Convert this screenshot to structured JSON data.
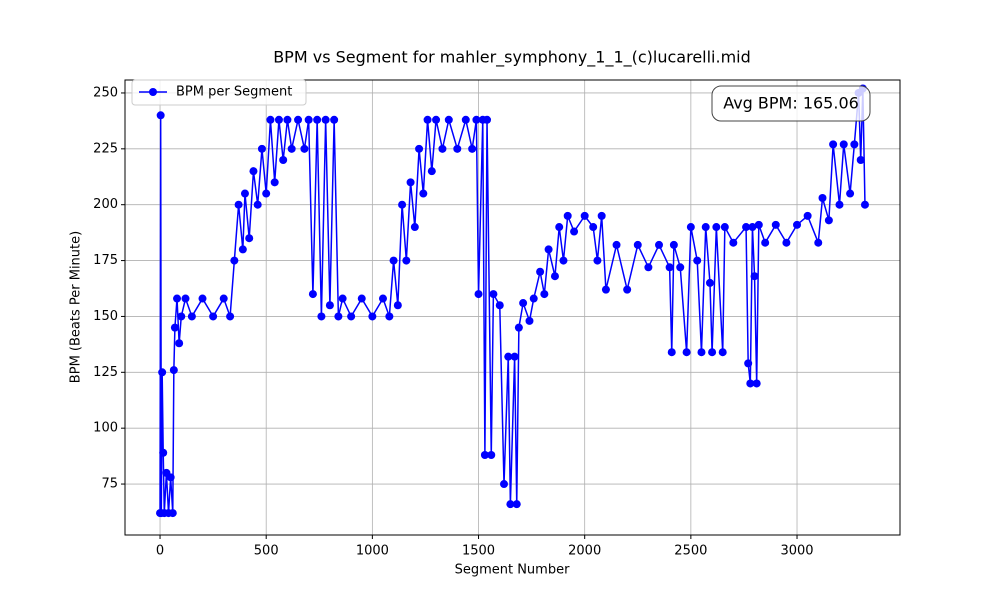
{
  "chart_data": {
    "type": "line",
    "title": "BPM vs Segment for mahler_symphony_1_1_(c)lucarelli.mid",
    "xlabel": "Segment Number",
    "ylabel": "BPM (Beats Per Minute)",
    "annotation": "Avg BPM: 165.06",
    "legend": "upper left",
    "grid": true,
    "xlim": [
      -165,
      3485
    ],
    "ylim": [
      52.2,
      255.8
    ],
    "xticks": [
      0,
      500,
      1000,
      1500,
      2000,
      2500,
      3000
    ],
    "yticks": [
      75,
      100,
      125,
      150,
      175,
      200,
      225,
      250
    ],
    "x": [
      0,
      3,
      6,
      10,
      15,
      20,
      30,
      40,
      50,
      60,
      65,
      70,
      80,
      90,
      100,
      120,
      150,
      200,
      250,
      300,
      330,
      350,
      370,
      390,
      400,
      420,
      440,
      460,
      480,
      500,
      520,
      540,
      560,
      580,
      600,
      620,
      650,
      680,
      700,
      720,
      740,
      760,
      780,
      800,
      820,
      840,
      860,
      900,
      950,
      1000,
      1050,
      1080,
      1100,
      1120,
      1140,
      1160,
      1180,
      1200,
      1220,
      1240,
      1260,
      1280,
      1300,
      1330,
      1360,
      1400,
      1440,
      1470,
      1490,
      1500,
      1520,
      1530,
      1540,
      1560,
      1570,
      1600,
      1620,
      1640,
      1650,
      1670,
      1680,
      1690,
      1710,
      1740,
      1760,
      1790,
      1810,
      1830,
      1860,
      1880,
      1900,
      1920,
      1950,
      2000,
      2040,
      2060,
      2080,
      2100,
      2150,
      2200,
      2250,
      2300,
      2350,
      2400,
      2410,
      2420,
      2450,
      2480,
      2500,
      2530,
      2550,
      2570,
      2590,
      2600,
      2620,
      2650,
      2660,
      2700,
      2760,
      2770,
      2780,
      2790,
      2800,
      2810,
      2820,
      2850,
      2900,
      2950,
      3000,
      3050,
      3100,
      3120,
      3150,
      3170,
      3200,
      3220,
      3250,
      3270,
      3290,
      3300,
      3310,
      3320
    ],
    "series": [
      {
        "name": "BPM per Segment",
        "color": "#0000ff",
        "values": [
          62,
          240,
          62,
          125,
          89,
          62,
          80,
          62,
          78,
          62,
          126,
          145,
          158,
          138,
          150,
          158,
          150,
          158,
          150,
          158,
          150,
          175,
          200,
          180,
          205,
          185,
          215,
          200,
          225,
          205,
          238,
          210,
          238,
          220,
          238,
          225,
          238,
          225,
          238,
          160,
          238,
          150,
          238,
          155,
          238,
          150,
          158,
          150,
          158,
          150,
          158,
          150,
          175,
          155,
          200,
          175,
          210,
          190,
          225,
          205,
          238,
          215,
          238,
          225,
          238,
          225,
          238,
          225,
          238,
          160,
          238,
          88,
          238,
          88,
          160,
          155,
          75,
          132,
          66,
          132,
          66,
          145,
          156,
          148,
          158,
          170,
          160,
          180,
          168,
          190,
          175,
          195,
          188,
          195,
          190,
          175,
          195,
          162,
          182,
          162,
          182,
          172,
          182,
          172,
          134,
          182,
          172,
          134,
          190,
          175,
          134,
          190,
          165,
          134,
          190,
          134,
          190,
          183,
          190,
          129,
          120,
          190,
          168,
          120,
          191,
          183,
          191,
          183,
          191,
          195,
          183,
          203,
          193,
          227,
          200,
          227,
          205,
          227,
          250,
          220,
          252,
          200
        ]
      }
    ]
  }
}
